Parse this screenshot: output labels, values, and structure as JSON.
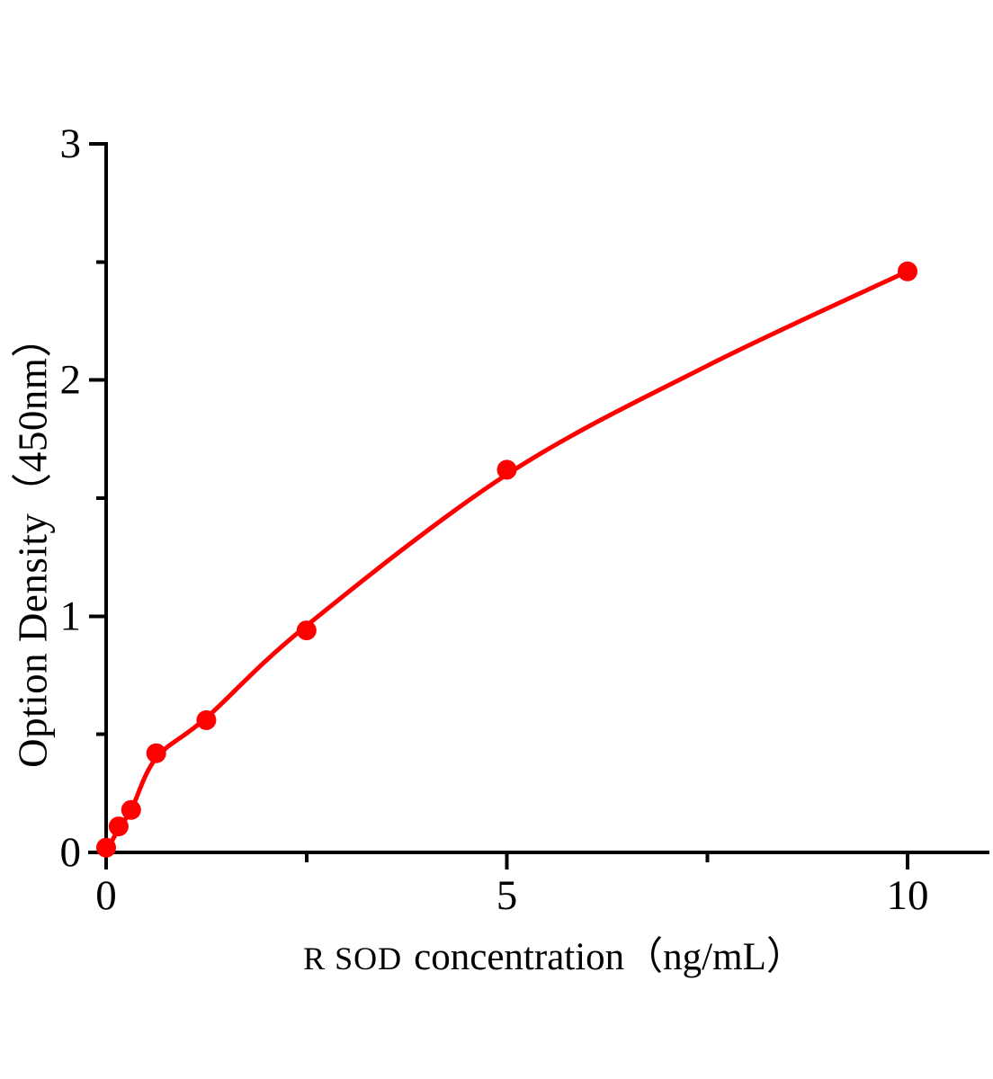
{
  "figure": {
    "background": "#ffffff"
  },
  "chart_data": {
    "type": "scatter",
    "xlabel_prefix": "R SOD",
    "xlabel_rest": "concentration（ng/mL）",
    "ylabel": "Option Density（450nm）",
    "x_range": [
      0,
      11
    ],
    "y_range": [
      0,
      3
    ],
    "x_major_ticks": [
      0,
      5,
      10
    ],
    "x_minor_ticks": [
      2.5,
      7.5
    ],
    "y_major_ticks": [
      0,
      1,
      2,
      3
    ],
    "y_minor_ticks": [
      0.5,
      1.5,
      2.5
    ],
    "grid": false,
    "legend": false,
    "points": [
      [
        0,
        0.02
      ],
      [
        0.156,
        0.11
      ],
      [
        0.312,
        0.18
      ],
      [
        0.625,
        0.42
      ],
      [
        1.25,
        0.56
      ],
      [
        2.5,
        0.94
      ],
      [
        5,
        1.62
      ],
      [
        10,
        2.46
      ]
    ],
    "fit_curve_points": [
      [
        0,
        0
      ],
      [
        0.156,
        0.1
      ],
      [
        0.312,
        0.18
      ],
      [
        0.625,
        0.4
      ],
      [
        1.25,
        0.57
      ],
      [
        2.5,
        0.96
      ],
      [
        5,
        1.6
      ],
      [
        7.5,
        2.06
      ],
      [
        10,
        2.46
      ]
    ],
    "series_color": "#ff0000",
    "axis_color": "#000000",
    "text_color": "#000000"
  }
}
